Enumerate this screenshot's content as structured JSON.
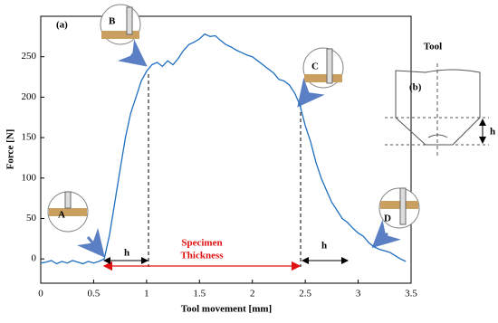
{
  "chart_data": {
    "type": "line",
    "xlabel": "Tool movement [mm]",
    "ylabel": "Force [N]",
    "panel_label": "(a)",
    "span_label": [
      "Specimen",
      "Thickness"
    ],
    "h_labels": [
      "h",
      "h"
    ],
    "stage_labels": [
      "A",
      "B",
      "C",
      "D"
    ],
    "inset": {
      "title": "Tool",
      "label": "(b)",
      "h_label": "h"
    },
    "xlim": [
      0,
      3.5
    ],
    "xticks": [
      0,
      0.5,
      1,
      1.5,
      2,
      2.5,
      3,
      3.5
    ],
    "ylim": [
      -30,
      300
    ],
    "yticks": [
      0,
      50,
      100,
      150,
      200,
      250
    ],
    "color": "#1f6fc0",
    "x": [
      0,
      0.05,
      0.1,
      0.15,
      0.2,
      0.25,
      0.3,
      0.35,
      0.4,
      0.45,
      0.5,
      0.55,
      0.6,
      0.65,
      0.7,
      0.75,
      0.8,
      0.85,
      0.9,
      0.95,
      1.0,
      1.05,
      1.1,
      1.15,
      1.2,
      1.25,
      1.3,
      1.35,
      1.4,
      1.45,
      1.5,
      1.55,
      1.6,
      1.65,
      1.7,
      1.75,
      1.8,
      1.85,
      1.9,
      1.95,
      2.0,
      2.05,
      2.1,
      2.15,
      2.2,
      2.25,
      2.3,
      2.35,
      2.4,
      2.45,
      2.5,
      2.55,
      2.6,
      2.65,
      2.7,
      2.75,
      2.8,
      2.85,
      2.9,
      2.95,
      3.0,
      3.05,
      3.1,
      3.15,
      3.2,
      3.25,
      3.3,
      3.35,
      3.4,
      3.45
    ],
    "values": [
      -5,
      -4,
      -2,
      -6,
      -3,
      -5,
      -2,
      -4,
      -6,
      -3,
      -5,
      -3,
      0,
      30,
      70,
      110,
      150,
      180,
      200,
      220,
      232,
      240,
      243,
      238,
      245,
      240,
      248,
      258,
      265,
      268,
      272,
      278,
      275,
      276,
      270,
      265,
      262,
      258,
      255,
      252,
      250,
      245,
      240,
      235,
      230,
      222,
      220,
      215,
      205,
      190,
      165,
      145,
      120,
      100,
      85,
      70,
      60,
      50,
      45,
      38,
      32,
      28,
      20,
      15,
      12,
      10,
      8,
      4,
      0,
      -3
    ]
  }
}
